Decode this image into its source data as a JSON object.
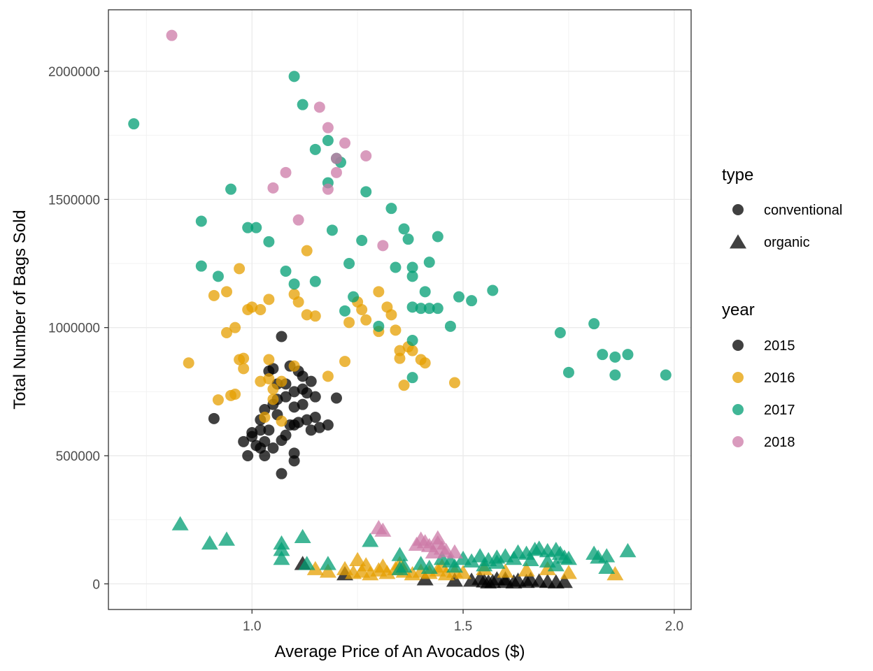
{
  "chart_data": {
    "type": "scatter",
    "title": "",
    "xlabel": "Average Price of An Avocados ($)",
    "ylabel": "Total Number of Bags Sold",
    "xlim": [
      0.66,
      2.04
    ],
    "ylim": [
      -100000,
      2240000
    ],
    "xticks": [
      1.0,
      1.5,
      2.0
    ],
    "xtick_labels": [
      "1.0",
      "1.5",
      "2.0"
    ],
    "yticks": [
      0,
      500000,
      1000000,
      1500000,
      2000000
    ],
    "ytick_labels": [
      "0",
      "500000",
      "1000000",
      "1500000",
      "2000000"
    ],
    "grid": true,
    "legend_placement": "right",
    "legend": {
      "type_title": "type",
      "type_entries": [
        {
          "label": "conventional",
          "shape": "circle"
        },
        {
          "label": "organic",
          "shape": "triangle"
        }
      ],
      "year_title": "year",
      "year_entries": [
        {
          "label": "2015",
          "color": "#000000"
        },
        {
          "label": "2016",
          "color": "#E69F00"
        },
        {
          "label": "2017",
          "color": "#009E73"
        },
        {
          "label": "2018",
          "color": "#CC79A7"
        }
      ]
    },
    "series": [
      {
        "name": "2015",
        "color": "#000000",
        "conventional": [
          [
            1.07,
            965000
          ],
          [
            0.91,
            645000
          ],
          [
            1.08,
            780000
          ],
          [
            1.1,
            750000
          ],
          [
            1.04,
            830000
          ],
          [
            1.05,
            840000
          ],
          [
            1.09,
            850000
          ],
          [
            1.11,
            830000
          ],
          [
            1.12,
            810000
          ],
          [
            1.14,
            790000
          ],
          [
            1.05,
            700000
          ],
          [
            1.06,
            720000
          ],
          [
            1.08,
            730000
          ],
          [
            1.1,
            690000
          ],
          [
            1.12,
            760000
          ],
          [
            1.13,
            745000
          ],
          [
            1.15,
            730000
          ],
          [
            1.2,
            725000
          ],
          [
            1.03,
            680000
          ],
          [
            1.02,
            640000
          ],
          [
            1.06,
            660000
          ],
          [
            1.09,
            620000
          ],
          [
            1.11,
            630000
          ],
          [
            1.13,
            640000
          ],
          [
            1.15,
            650000
          ],
          [
            1.18,
            620000
          ],
          [
            1.0,
            590000
          ],
          [
            1.02,
            600000
          ],
          [
            1.04,
            600000
          ],
          [
            1.07,
            560000
          ],
          [
            1.08,
            580000
          ],
          [
            1.1,
            620000
          ],
          [
            1.14,
            600000
          ],
          [
            1.16,
            610000
          ],
          [
            0.98,
            555000
          ],
          [
            1.0,
            575000
          ],
          [
            1.01,
            540000
          ],
          [
            1.02,
            530000
          ],
          [
            1.03,
            555000
          ],
          [
            1.05,
            530000
          ],
          [
            0.99,
            500000
          ],
          [
            1.03,
            500000
          ],
          [
            1.1,
            510000
          ],
          [
            1.1,
            480000
          ],
          [
            1.07,
            430000
          ],
          [
            1.12,
            700000
          ],
          [
            1.06,
            780000
          ]
        ],
        "organic": [
          [
            1.12,
            80000
          ],
          [
            1.22,
            40000
          ],
          [
            1.41,
            20000
          ],
          [
            1.48,
            15000
          ],
          [
            1.52,
            15000
          ],
          [
            1.55,
            12000
          ],
          [
            1.57,
            10000
          ],
          [
            1.6,
            10000
          ],
          [
            1.62,
            8000
          ],
          [
            1.65,
            10000
          ],
          [
            1.68,
            12000
          ],
          [
            1.7,
            10000
          ],
          [
            1.72,
            8000
          ],
          [
            1.74,
            10000
          ],
          [
            1.58,
            20000
          ],
          [
            1.63,
            15000
          ],
          [
            1.56,
            8000
          ],
          [
            1.66,
            18000
          ],
          [
            1.6,
            20000
          ],
          [
            1.54,
            22000
          ]
        ]
      },
      {
        "name": "2016",
        "color": "#E69F00",
        "conventional": [
          [
            0.97,
            1230000
          ],
          [
            0.91,
            1125000
          ],
          [
            0.94,
            1140000
          ],
          [
            0.99,
            1070000
          ],
          [
            1.0,
            1080000
          ],
          [
            1.02,
            1070000
          ],
          [
            1.04,
            1110000
          ],
          [
            1.1,
            1130000
          ],
          [
            1.11,
            1100000
          ],
          [
            1.13,
            1300000
          ],
          [
            1.13,
            1050000
          ],
          [
            1.15,
            1045000
          ],
          [
            0.94,
            980000
          ],
          [
            0.96,
            1000000
          ],
          [
            0.97,
            875000
          ],
          [
            0.98,
            880000
          ],
          [
            0.98,
            840000
          ],
          [
            0.85,
            862000
          ],
          [
            1.02,
            790000
          ],
          [
            1.04,
            800000
          ],
          [
            1.04,
            875000
          ],
          [
            1.05,
            760000
          ],
          [
            1.07,
            790000
          ],
          [
            1.1,
            850000
          ],
          [
            0.92,
            718000
          ],
          [
            0.95,
            735000
          ],
          [
            0.96,
            740000
          ],
          [
            1.03,
            650000
          ],
          [
            1.05,
            720000
          ],
          [
            1.07,
            635000
          ],
          [
            1.18,
            810000
          ],
          [
            1.22,
            868000
          ],
          [
            1.23,
            1020000
          ],
          [
            1.25,
            1100000
          ],
          [
            1.26,
            1070000
          ],
          [
            1.27,
            1030000
          ],
          [
            1.3,
            1140000
          ],
          [
            1.3,
            985000
          ],
          [
            1.32,
            1080000
          ],
          [
            1.33,
            1050000
          ],
          [
            1.34,
            990000
          ],
          [
            1.35,
            910000
          ],
          [
            1.35,
            880000
          ],
          [
            1.36,
            775000
          ],
          [
            1.37,
            925000
          ],
          [
            1.38,
            910000
          ],
          [
            1.4,
            875000
          ],
          [
            1.41,
            862000
          ],
          [
            1.48,
            785000
          ]
        ],
        "organic": [
          [
            1.22,
            60000
          ],
          [
            1.24,
            45000
          ],
          [
            1.26,
            50000
          ],
          [
            1.28,
            40000
          ],
          [
            1.3,
            55000
          ],
          [
            1.32,
            45000
          ],
          [
            1.34,
            60000
          ],
          [
            1.36,
            50000
          ],
          [
            1.38,
            40000
          ],
          [
            1.4,
            50000
          ],
          [
            1.42,
            45000
          ],
          [
            1.44,
            55000
          ],
          [
            1.46,
            40000
          ],
          [
            1.48,
            50000
          ],
          [
            1.5,
            45000
          ],
          [
            1.25,
            95000
          ],
          [
            1.35,
            80000
          ],
          [
            1.27,
            75000
          ],
          [
            1.15,
            60000
          ],
          [
            1.75,
            45000
          ],
          [
            1.86,
            40000
          ],
          [
            1.7,
            60000
          ],
          [
            1.6,
            50000
          ],
          [
            1.65,
            55000
          ],
          [
            1.18,
            50000
          ],
          [
            1.31,
            70000
          ],
          [
            1.45,
            70000
          ],
          [
            1.55,
            60000
          ]
        ]
      },
      {
        "name": "2017",
        "color": "#009E73",
        "conventional": [
          [
            1.1,
            1980000
          ],
          [
            0.72,
            1795000
          ],
          [
            1.12,
            1870000
          ],
          [
            1.18,
            1730000
          ],
          [
            1.15,
            1695000
          ],
          [
            1.2,
            1660000
          ],
          [
            1.21,
            1645000
          ],
          [
            1.18,
            1565000
          ],
          [
            0.95,
            1540000
          ],
          [
            1.27,
            1530000
          ],
          [
            1.33,
            1465000
          ],
          [
            0.88,
            1415000
          ],
          [
            0.99,
            1390000
          ],
          [
            1.01,
            1390000
          ],
          [
            1.19,
            1380000
          ],
          [
            1.36,
            1385000
          ],
          [
            1.44,
            1355000
          ],
          [
            1.04,
            1335000
          ],
          [
            1.26,
            1340000
          ],
          [
            1.37,
            1345000
          ],
          [
            0.88,
            1240000
          ],
          [
            0.92,
            1200000
          ],
          [
            1.08,
            1220000
          ],
          [
            1.15,
            1180000
          ],
          [
            1.1,
            1170000
          ],
          [
            1.23,
            1250000
          ],
          [
            1.34,
            1235000
          ],
          [
            1.38,
            1235000
          ],
          [
            1.38,
            1200000
          ],
          [
            1.42,
            1255000
          ],
          [
            1.24,
            1120000
          ],
          [
            1.22,
            1065000
          ],
          [
            1.3,
            1005000
          ],
          [
            1.38,
            1080000
          ],
          [
            1.4,
            1075000
          ],
          [
            1.41,
            1140000
          ],
          [
            1.42,
            1075000
          ],
          [
            1.44,
            1075000
          ],
          [
            1.47,
            1005000
          ],
          [
            1.49,
            1120000
          ],
          [
            1.52,
            1105000
          ],
          [
            1.57,
            1145000
          ],
          [
            1.38,
            950000
          ],
          [
            1.38,
            805000
          ],
          [
            1.73,
            980000
          ],
          [
            1.75,
            825000
          ],
          [
            1.81,
            1015000
          ],
          [
            1.83,
            895000
          ],
          [
            1.86,
            885000
          ],
          [
            1.89,
            895000
          ],
          [
            1.86,
            815000
          ],
          [
            1.98,
            815000
          ]
        ],
        "organic": [
          [
            0.83,
            235000
          ],
          [
            0.9,
            160000
          ],
          [
            0.94,
            175000
          ],
          [
            1.07,
            160000
          ],
          [
            1.07,
            135000
          ],
          [
            1.07,
            100000
          ],
          [
            1.12,
            185000
          ],
          [
            1.13,
            80000
          ],
          [
            1.18,
            80000
          ],
          [
            1.28,
            170000
          ],
          [
            1.35,
            115000
          ],
          [
            1.35,
            60000
          ],
          [
            1.4,
            80000
          ],
          [
            1.45,
            100000
          ],
          [
            1.47,
            90000
          ],
          [
            1.5,
            100000
          ],
          [
            1.52,
            90000
          ],
          [
            1.54,
            110000
          ],
          [
            1.56,
            95000
          ],
          [
            1.58,
            105000
          ],
          [
            1.6,
            110000
          ],
          [
            1.62,
            100000
          ],
          [
            1.63,
            125000
          ],
          [
            1.65,
            120000
          ],
          [
            1.67,
            135000
          ],
          [
            1.68,
            140000
          ],
          [
            1.7,
            130000
          ],
          [
            1.72,
            135000
          ],
          [
            1.73,
            120000
          ],
          [
            1.74,
            105000
          ],
          [
            1.75,
            100000
          ],
          [
            1.58,
            85000
          ],
          [
            1.66,
            95000
          ],
          [
            1.7,
            90000
          ],
          [
            1.72,
            75000
          ],
          [
            1.81,
            120000
          ],
          [
            1.82,
            105000
          ],
          [
            1.84,
            110000
          ],
          [
            1.84,
            65000
          ],
          [
            1.89,
            130000
          ],
          [
            1.48,
            70000
          ],
          [
            1.55,
            75000
          ],
          [
            1.42,
            65000
          ],
          [
            1.36,
            70000
          ]
        ]
      },
      {
        "name": "2018",
        "color": "#CC79A7",
        "conventional": [
          [
            0.81,
            2140000
          ],
          [
            1.16,
            1860000
          ],
          [
            1.18,
            1780000
          ],
          [
            1.22,
            1720000
          ],
          [
            1.2,
            1660000
          ],
          [
            1.27,
            1670000
          ],
          [
            1.08,
            1605000
          ],
          [
            1.2,
            1605000
          ],
          [
            1.05,
            1545000
          ],
          [
            1.18,
            1540000
          ],
          [
            1.11,
            1420000
          ],
          [
            1.31,
            1320000
          ]
        ],
        "organic": [
          [
            1.3,
            220000
          ],
          [
            1.31,
            210000
          ],
          [
            1.4,
            175000
          ],
          [
            1.41,
            165000
          ],
          [
            1.42,
            150000
          ],
          [
            1.44,
            180000
          ],
          [
            1.44,
            160000
          ],
          [
            1.45,
            140000
          ],
          [
            1.43,
            125000
          ],
          [
            1.46,
            130000
          ],
          [
            1.48,
            125000
          ],
          [
            1.39,
            155000
          ]
        ]
      }
    ]
  }
}
